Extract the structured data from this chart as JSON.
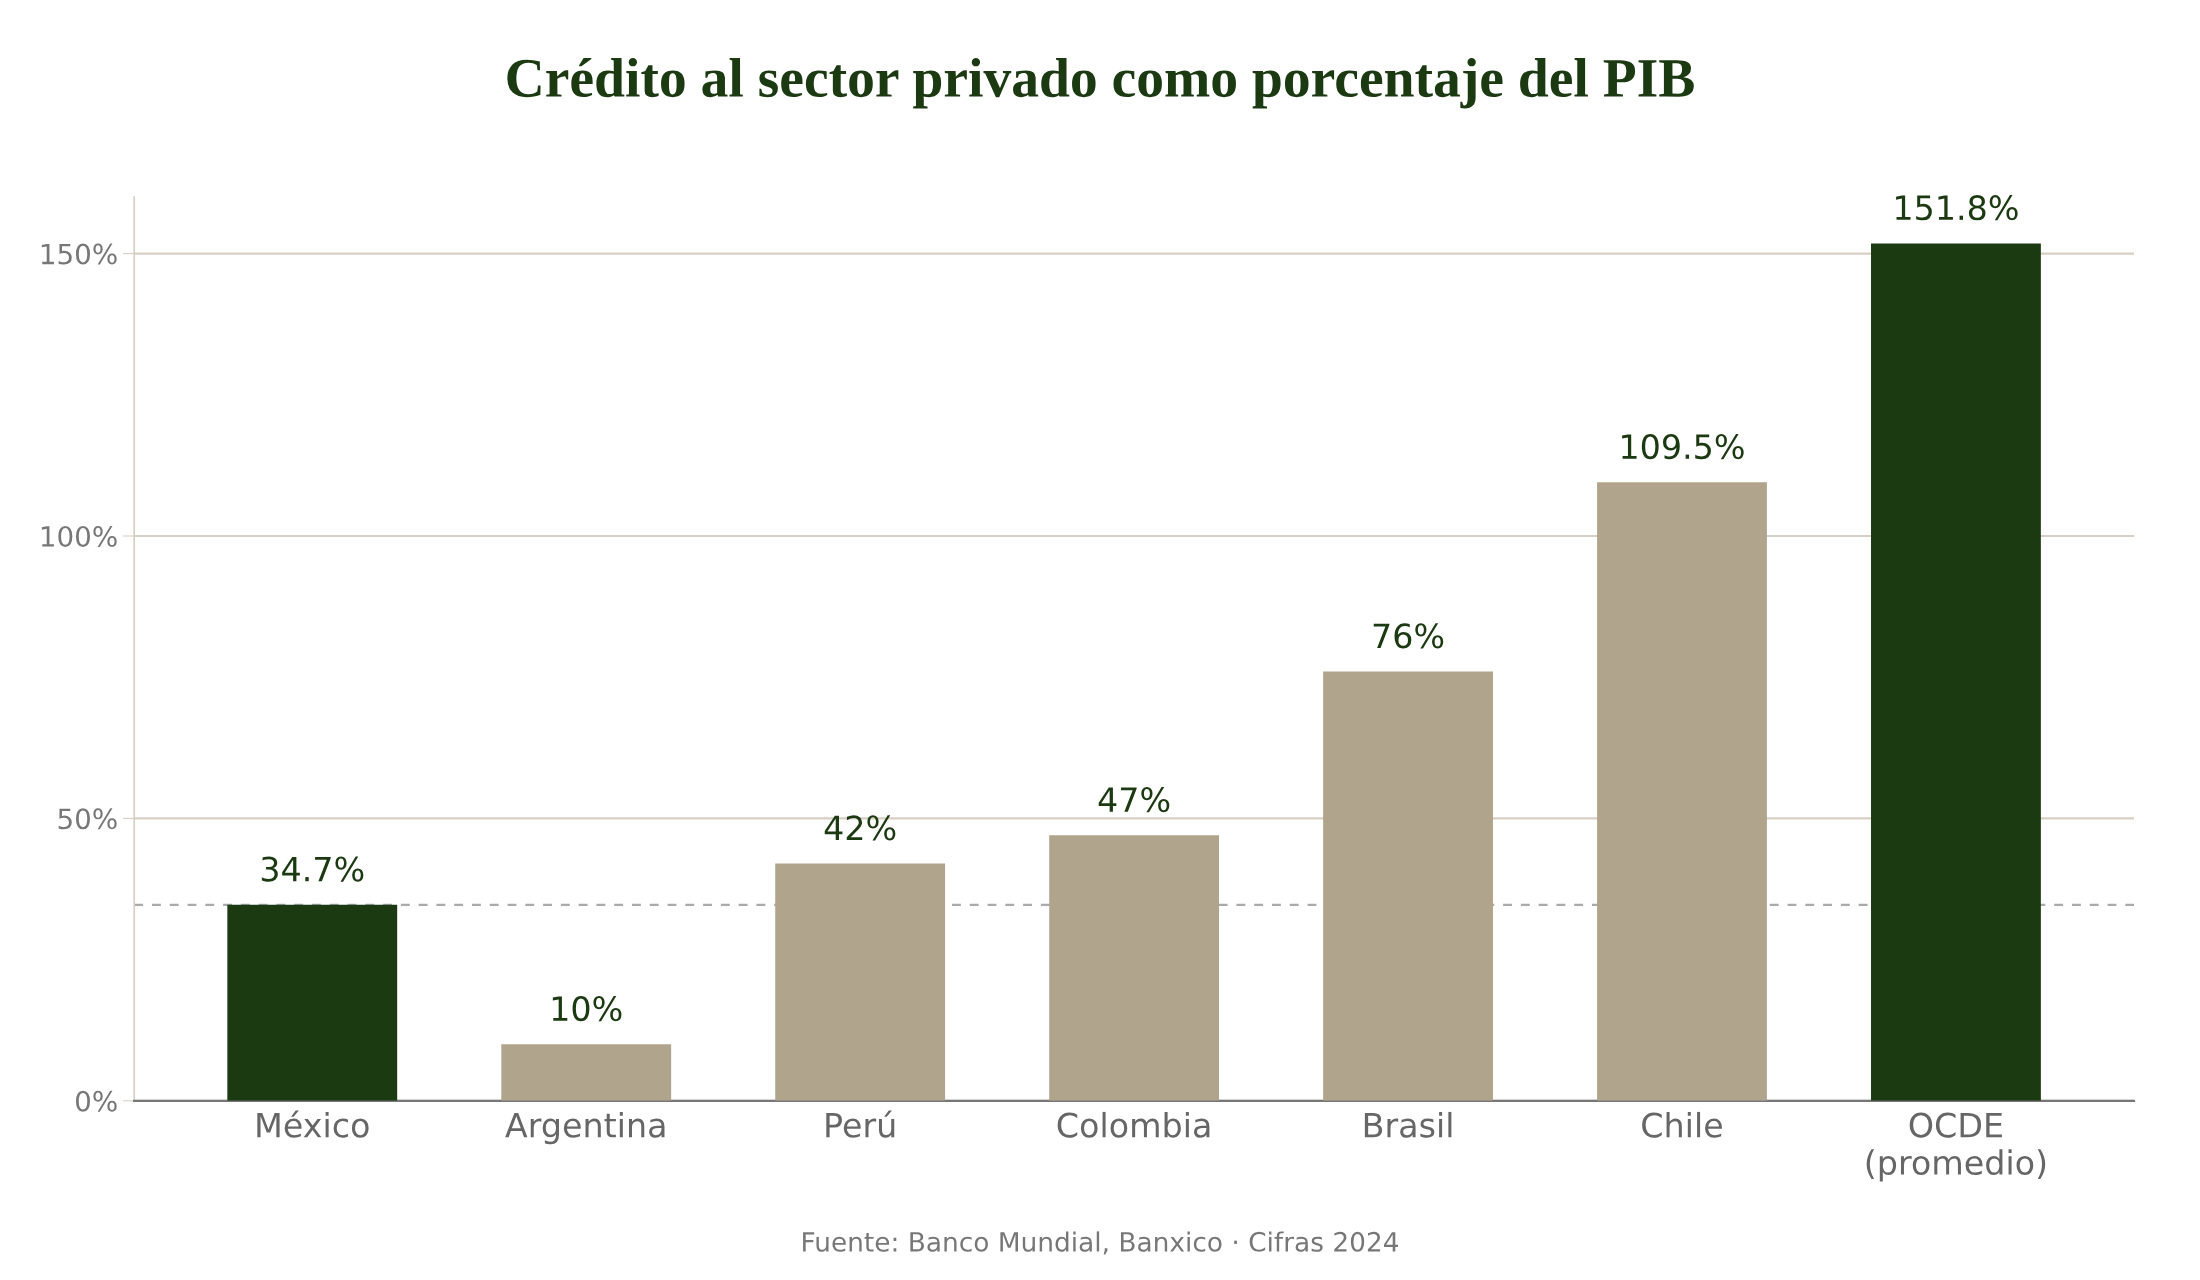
{
  "chart_data": {
    "type": "bar",
    "title": "Crédito al sector privado como porcentaje del PIB",
    "categories": [
      "México",
      "Argentina",
      "Perú",
      "Colombia",
      "Brasil",
      "Chile",
      "OCDE\n(promedio)"
    ],
    "values": [
      34.7,
      10,
      42,
      47,
      76,
      109.5,
      151.8
    ],
    "colors": [
      "#1c3a12",
      "#b0a48c",
      "#b0a48c",
      "#b0a48c",
      "#b0a48c",
      "#b0a48c",
      "#1c3a12"
    ],
    "value_labels": [
      "34.7%",
      "10%",
      "42%",
      "47%",
      "76%",
      "109.5%",
      "151.8%"
    ],
    "yticks": [
      {
        "value": 0,
        "label": "0%"
      },
      {
        "value": 50,
        "label": "50%"
      },
      {
        "value": 100,
        "label": "100%"
      },
      {
        "value": 150,
        "label": "150%"
      }
    ],
    "ylim": [
      0,
      160
    ],
    "grid": "y",
    "ref_lines": [
      {
        "axis": "y",
        "value": 34.7,
        "label": null,
        "color": "#aaaaaa",
        "line_style": "dashed"
      }
    ],
    "annotations": [
      "Fuente: Banco Mundial, Banxico · Cifras 2024"
    ]
  }
}
